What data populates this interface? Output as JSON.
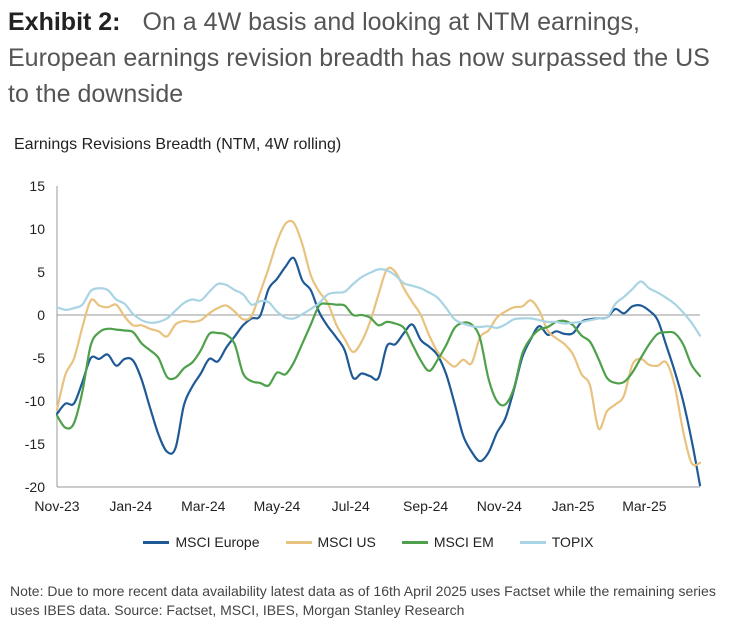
{
  "header": {
    "exhibit": "Exhibit 2:",
    "title": "On a 4W basis and looking at NTM earnings, European earnings revision breadth has now surpassed the US to the downside"
  },
  "chart_data": {
    "type": "line",
    "title": "Earnings Revisions Breadth (NTM, 4W rolling)",
    "ylim": [
      -20,
      15
    ],
    "yticks": [
      15,
      10,
      5,
      0,
      -5,
      -10,
      -15,
      -20
    ],
    "xticks": [
      "Nov-23",
      "Jan-24",
      "Mar-24",
      "May-24",
      "Jul-24",
      "Sep-24",
      "Nov-24",
      "Jan-25",
      "Mar-25"
    ],
    "x": [
      "2023-11-01",
      "2023-11-08",
      "2023-11-15",
      "2023-11-22",
      "2023-11-29",
      "2023-12-06",
      "2023-12-13",
      "2023-12-20",
      "2023-12-27",
      "2024-01-03",
      "2024-01-10",
      "2024-01-17",
      "2024-01-24",
      "2024-01-31",
      "2024-02-07",
      "2024-02-14",
      "2024-02-21",
      "2024-02-28",
      "2024-03-06",
      "2024-03-13",
      "2024-03-20",
      "2024-03-27",
      "2024-04-03",
      "2024-04-10",
      "2024-04-17",
      "2024-04-24",
      "2024-05-01",
      "2024-05-08",
      "2024-05-15",
      "2024-05-22",
      "2024-05-29",
      "2024-06-05",
      "2024-06-12",
      "2024-06-19",
      "2024-06-26",
      "2024-07-03",
      "2024-07-10",
      "2024-07-17",
      "2024-07-24",
      "2024-07-31",
      "2024-08-07",
      "2024-08-14",
      "2024-08-21",
      "2024-08-28",
      "2024-09-04",
      "2024-09-11",
      "2024-09-18",
      "2024-09-25",
      "2024-10-02",
      "2024-10-09",
      "2024-10-16",
      "2024-10-23",
      "2024-10-30",
      "2024-11-06",
      "2024-11-13",
      "2024-11-20",
      "2024-11-27",
      "2024-12-04",
      "2024-12-11",
      "2024-12-18",
      "2024-12-25",
      "2025-01-01",
      "2025-01-08",
      "2025-01-15",
      "2025-01-22",
      "2025-01-29",
      "2025-02-05",
      "2025-02-12",
      "2025-02-19",
      "2025-02-26",
      "2025-03-05",
      "2025-03-12",
      "2025-03-19",
      "2025-03-26",
      "2025-04-02",
      "2025-04-09",
      "2025-04-16"
    ],
    "series": [
      {
        "name": "MSCI Europe",
        "color": "#1f5a96",
        "values": [
          -11.5,
          -10.3,
          -10.3,
          -7.8,
          -5,
          -5.1,
          -4.6,
          -5.9,
          -5.1,
          -5.3,
          -7.5,
          -10.8,
          -13.9,
          -15.9,
          -15.5,
          -10.5,
          -8.3,
          -6.8,
          -5.1,
          -5.4,
          -3.8,
          -2.5,
          -1.2,
          -0.4,
          -0.1,
          3,
          4.2,
          5.6,
          6.6,
          4,
          2.9,
          0.3,
          -1.3,
          -2.6,
          -4.1,
          -7.3,
          -6.8,
          -7.1,
          -7.3,
          -3.6,
          -3.4,
          -2.1,
          -1.1,
          -2.9,
          -3.7,
          -4.7,
          -6.9,
          -10.3,
          -14,
          -15.9,
          -17,
          -16,
          -13.7,
          -12,
          -8.7,
          -4.9,
          -2.8,
          -1.3,
          -2.3,
          -1.9,
          -2.2,
          -2.1,
          -0.8,
          -0.5,
          -0.4,
          -0.3,
          0.7,
          0.2,
          1,
          1.1,
          0.5,
          -0.6,
          -3.5,
          -6.5,
          -10,
          -14.5,
          -19.8
        ]
      },
      {
        "name": "MSCI US",
        "color": "#e8c27f",
        "values": [
          -11,
          -6.9,
          -5.1,
          -1.4,
          1.7,
          1.1,
          0.9,
          1.2,
          -0.2,
          -1.2,
          -1.2,
          -1.6,
          -1.9,
          -2.5,
          -1.1,
          -0.7,
          -0.8,
          -0.6,
          0.2,
          0.8,
          1.1,
          0.4,
          -0.5,
          -0.1,
          2.6,
          5.4,
          8.5,
          10.6,
          10.7,
          8.2,
          4.6,
          2.7,
          1.4,
          -1.1,
          -2.8,
          -4.3,
          -3.1,
          -0.8,
          2.4,
          5.3,
          5,
          3.1,
          1.5,
          0,
          -2.4,
          -4.3,
          -5.3,
          -6,
          -5.2,
          -5.6,
          -2.6,
          -1.8,
          -0.3,
          0.4,
          0.9,
          1,
          1.7,
          0.5,
          -1.8,
          -2.7,
          -3.4,
          -4.6,
          -6.9,
          -8.2,
          -13.2,
          -11.2,
          -10.4,
          -9.4,
          -5.8,
          -5.1,
          -5.8,
          -5.9,
          -5.5,
          -8.2,
          -13.5,
          -17.2,
          -17.2
        ]
      },
      {
        "name": "MSCI EM",
        "color": "#4ea14a",
        "values": [
          -11.7,
          -13.1,
          -12.6,
          -8.9,
          -3.5,
          -2,
          -1.6,
          -1.7,
          -1.8,
          -2,
          -3.3,
          -4.1,
          -5,
          -7.2,
          -7.3,
          -6.2,
          -5.5,
          -4.1,
          -2.2,
          -2.1,
          -2.3,
          -3.4,
          -6.8,
          -7.7,
          -7.9,
          -8.2,
          -6.7,
          -6.9,
          -5.5,
          -3.3,
          -1.1,
          1.1,
          1.3,
          1.2,
          1.1,
          0,
          0,
          -0.3,
          -1.2,
          -0.8,
          -1,
          -1.5,
          -3.4,
          -5.3,
          -6.5,
          -5.2,
          -3.5,
          -1.5,
          -0.9,
          -1.1,
          -2.7,
          -7.4,
          -10,
          -10.4,
          -8.5,
          -4.5,
          -2.7,
          -1.7,
          -1.4,
          -0.8,
          -0.7,
          -1.2,
          -2.4,
          -3.1,
          -5.1,
          -7.3,
          -7.9,
          -7.8,
          -6.7,
          -5,
          -3.4,
          -2.2,
          -2,
          -2.1,
          -3.4,
          -5.8,
          -7.1
        ]
      },
      {
        "name": "TOPIX",
        "color": "#a9d4e3",
        "values": [
          0.9,
          0.6,
          0.8,
          1.2,
          2.8,
          3.1,
          2.9,
          1.8,
          1.3,
          0.1,
          -0.6,
          -0.9,
          -0.8,
          -0.4,
          0.5,
          1.4,
          1.8,
          1.7,
          2.7,
          3.6,
          3.5,
          2.9,
          2.4,
          1.2,
          1.6,
          1.5,
          0.4,
          -0.3,
          -0.4,
          0.1,
          0.7,
          1.4,
          2.4,
          2.6,
          2.7,
          3.6,
          4.4,
          4.9,
          5.3,
          5.2,
          4.6,
          3.7,
          3.4,
          3.1,
          2.6,
          2,
          0.8,
          -0.5,
          -1,
          -1.3,
          -1.4,
          -1.3,
          -1.5,
          -1.1,
          -0.5,
          -0.4,
          -0.4,
          -0.6,
          -0.8,
          -0.8,
          -1,
          -0.9,
          -0.8,
          -0.6,
          -0.4,
          -0.3,
          1.3,
          2.1,
          3,
          3.9,
          3.1,
          2.6,
          2,
          1.3,
          0.3,
          -0.9,
          -2.4
        ]
      }
    ],
    "legend_position": "bottom",
    "grid": false
  },
  "note": "Note: Due to more recent data availability latest data as of 16th April 2025 uses Factset while the remaining series uses IBES data. Source: Factset, MSCI, IBES, Morgan Stanley Research"
}
